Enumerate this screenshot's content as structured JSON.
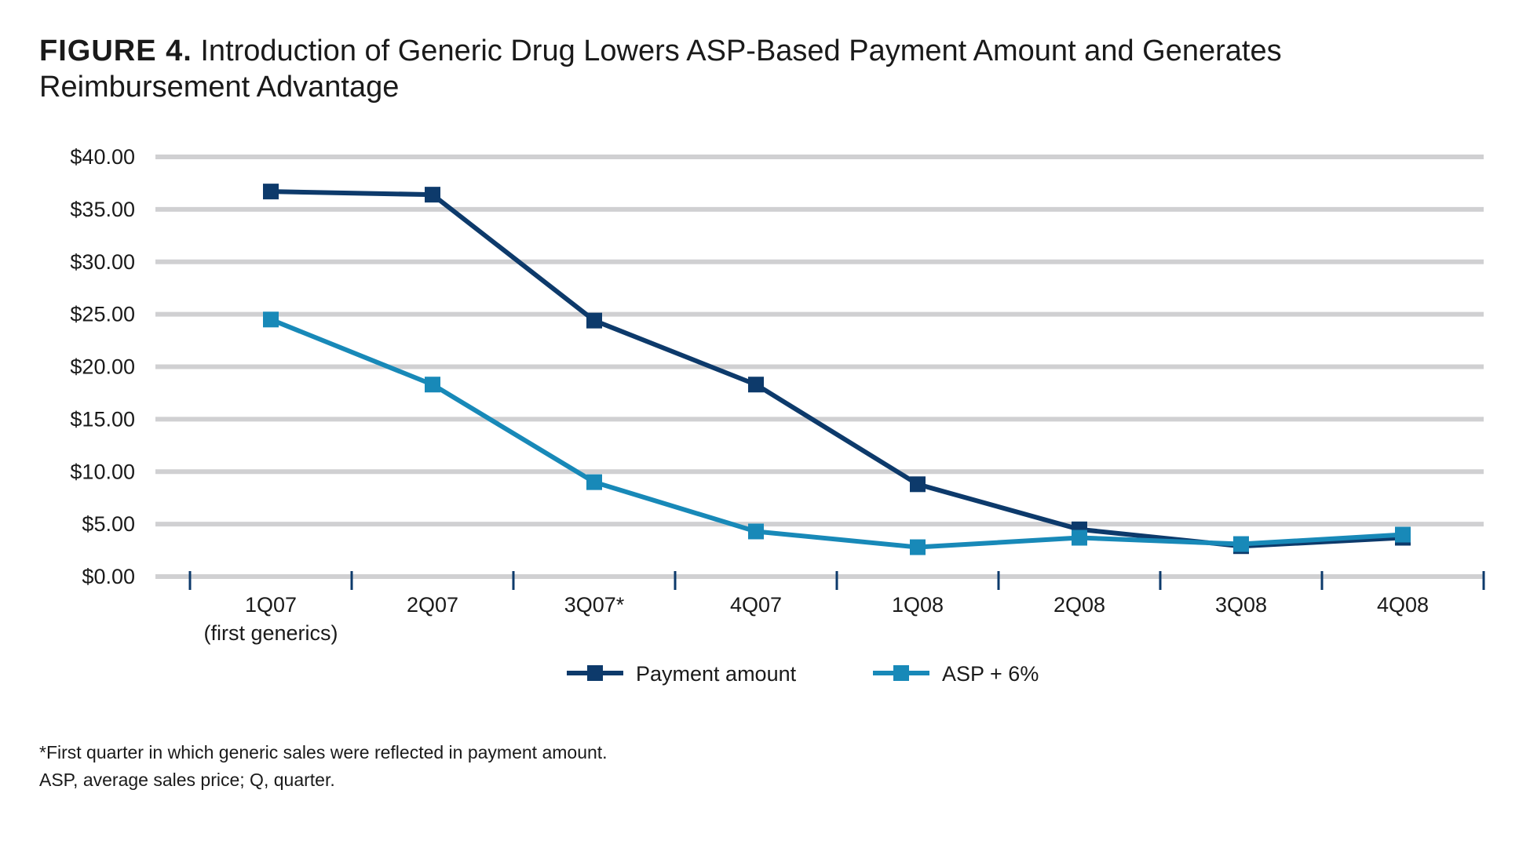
{
  "figure": {
    "label": "FIGURE 4.",
    "title_line1": "Introduction of Generic Drug Lowers ASP-Based Payment Amount and Generates",
    "title_line2": "Reimbursement Advantage"
  },
  "chart_data": {
    "type": "line",
    "title": "Introduction of Generic Drug Lowers ASP-Based Payment Amount and Generates Reimbursement Advantage",
    "xlabel": "",
    "ylabel": "",
    "ylim": [
      0,
      40
    ],
    "y_ticks": [
      0,
      5,
      10,
      15,
      20,
      25,
      30,
      35,
      40
    ],
    "y_tick_labels": [
      "$0.00",
      "$5.00",
      "$10.00",
      "$15.00",
      "$20.00",
      "$25.00",
      "$30.00",
      "$35.00",
      "$40.00"
    ],
    "grid": true,
    "categories": [
      [
        "1Q07",
        "(first generics)"
      ],
      [
        "2Q07"
      ],
      [
        "3Q07*"
      ],
      [
        "4Q07"
      ],
      [
        "1Q08"
      ],
      [
        "2Q08"
      ],
      [
        "3Q08"
      ],
      [
        "4Q08"
      ]
    ],
    "series": [
      {
        "name": "Payment amount",
        "color": "#0d3a6b",
        "values": [
          36.7,
          36.4,
          24.4,
          18.3,
          8.8,
          4.5,
          2.9,
          3.7
        ]
      },
      {
        "name": "ASP + 6%",
        "color": "#1889b8",
        "values": [
          24.5,
          18.3,
          9.0,
          4.3,
          2.8,
          3.7,
          3.1,
          4.0
        ]
      }
    ],
    "legend_position": "bottom-center"
  },
  "footnotes": {
    "line1": "*First quarter in which generic sales were reflected in payment amount.",
    "line2": "ASP, average sales price; Q, quarter."
  },
  "colors": {
    "gridline": "#d0d0d2",
    "axis_tick": "#0d3a6b"
  }
}
